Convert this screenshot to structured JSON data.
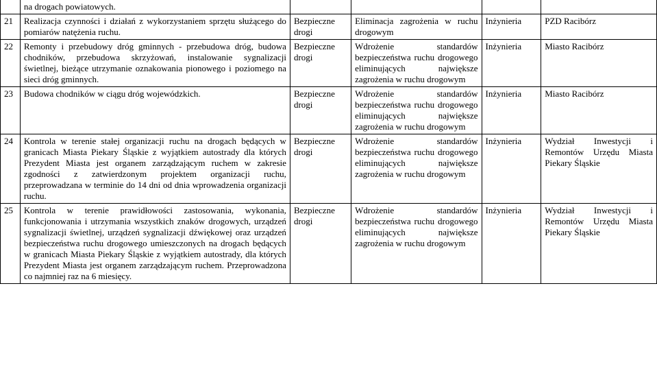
{
  "rows": [
    {
      "num": "",
      "desc": "na drogach powiatowych.",
      "cat": "",
      "goal": "",
      "type": "",
      "unit": "",
      "cls": "no-top"
    },
    {
      "num": "21",
      "desc": "Realizacja czynności i działań z wykorzystaniem sprzętu służącego do pomiarów natężenia ruchu.",
      "cat": "Bezpieczne drogi",
      "goal": "Eliminacja zagrożenia w ruchu drogowym",
      "type": "Inżynieria",
      "unit": "PZD Racibórz",
      "cls": ""
    },
    {
      "num": "22",
      "desc": "Remonty i przebudowy dróg gminnych - przebudowa dróg, budowa chodników, przebudowa skrzyżowań, instalowanie sygnalizacji świetlnej, bieżące utrzymanie oznakowania pionowego i poziomego na sieci dróg gminnych.",
      "cat": "Bezpieczne drogi",
      "goal": "Wdrożenie standardów bezpieczeństwa ruchu drogowego eliminujących największe zagrożenia w ruchu drogowym",
      "type": "Inżynieria",
      "unit": "Miasto Racibórz",
      "cls": ""
    },
    {
      "num": "23",
      "desc": "Budowa chodników w ciągu dróg wojewódzkich.",
      "cat": "Bezpieczne drogi",
      "goal": "Wdrożenie standardów bezpieczeństwa ruchu drogowego eliminujących największe zagrożenia w ruchu drogowym",
      "type": "Inżynieria",
      "unit": "Miasto Racibórz",
      "cls": ""
    },
    {
      "num": "24",
      "desc": "Kontrola w terenie stałej organizacji ruchu na drogach będących w granicach Miasta Piekary Śląskie z wyjątkiem autostrady dla których Prezydent Miasta jest organem zarządzającym ruchem w zakresie zgodności z zatwierdzonym projektem organizacji ruchu, przeprowadzana w terminie do 14 dni od dnia wprowadzenia organizacji ruchu.",
      "cat": "Bezpieczne drogi",
      "goal": "Wdrożenie standardów bezpieczeństwa ruchu drogowego eliminujących największe zagrożenia w ruchu drogowym",
      "type": "Inżynieria",
      "unit": "Wydział Inwestycji i Remontów Urzędu Miasta Piekary Śląskie",
      "cls": ""
    },
    {
      "num": "25",
      "desc": "Kontrola w terenie prawidłowości zastosowania, wykonania, funkcjonowania i utrzymania wszystkich znaków drogowych, urządzeń sygnalizacji świetlnej, urządzeń sygnalizacji dźwiękowej oraz urządzeń bezpieczeństwa ruchu drogowego umieszczonych na drogach będących w granicach Miasta Piekary Śląskie z wyjątkiem autostrady, dla których Prezydent Miasta jest organem zarządzającym ruchem. Przeprowadzona co najmniej raz na 6 miesięcy.",
      "cat": "Bezpieczne drogi",
      "goal": "Wdrożenie standardów bezpieczeństwa ruchu drogowego eliminujących największe zagrożenia w ruchu drogowym",
      "type": "Inżynieria",
      "unit": "Wydział Inwestycji i Remontów Urzędu Miasta Piekary Śląskie",
      "cls": ""
    }
  ]
}
